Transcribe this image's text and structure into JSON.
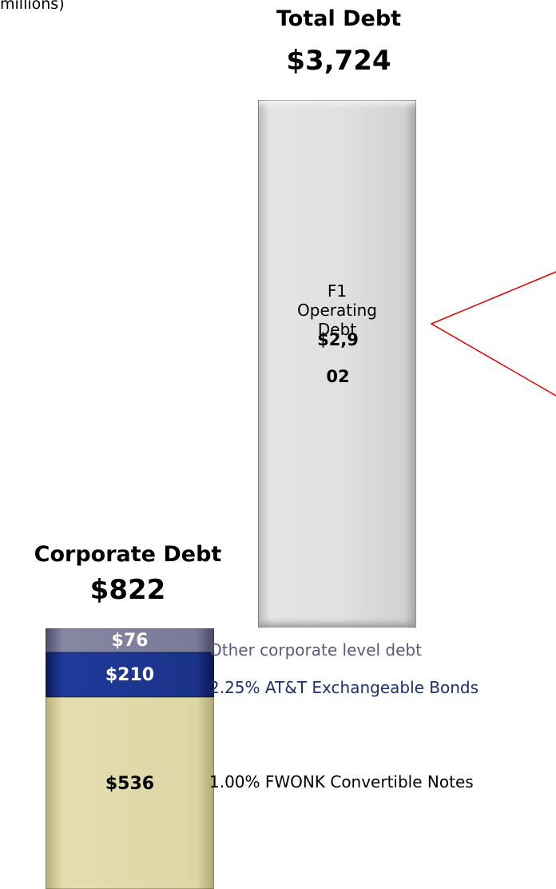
{
  "header": {
    "note": "millions)"
  },
  "total": {
    "title": "Total Debt",
    "value": "$3,724"
  },
  "f1": {
    "label": "F1 Operating Debt",
    "value": "$2,902"
  },
  "corporate": {
    "title": "Corporate Debt",
    "value": "$822",
    "segments": [
      {
        "value": "$76",
        "label": "Other corporate level debt"
      },
      {
        "value": "$210",
        "label": "2.25% AT&T Exchangeable Bonds"
      },
      {
        "value": "$536",
        "label": "1.00% FWONK Convertible Notes"
      }
    ]
  }
}
